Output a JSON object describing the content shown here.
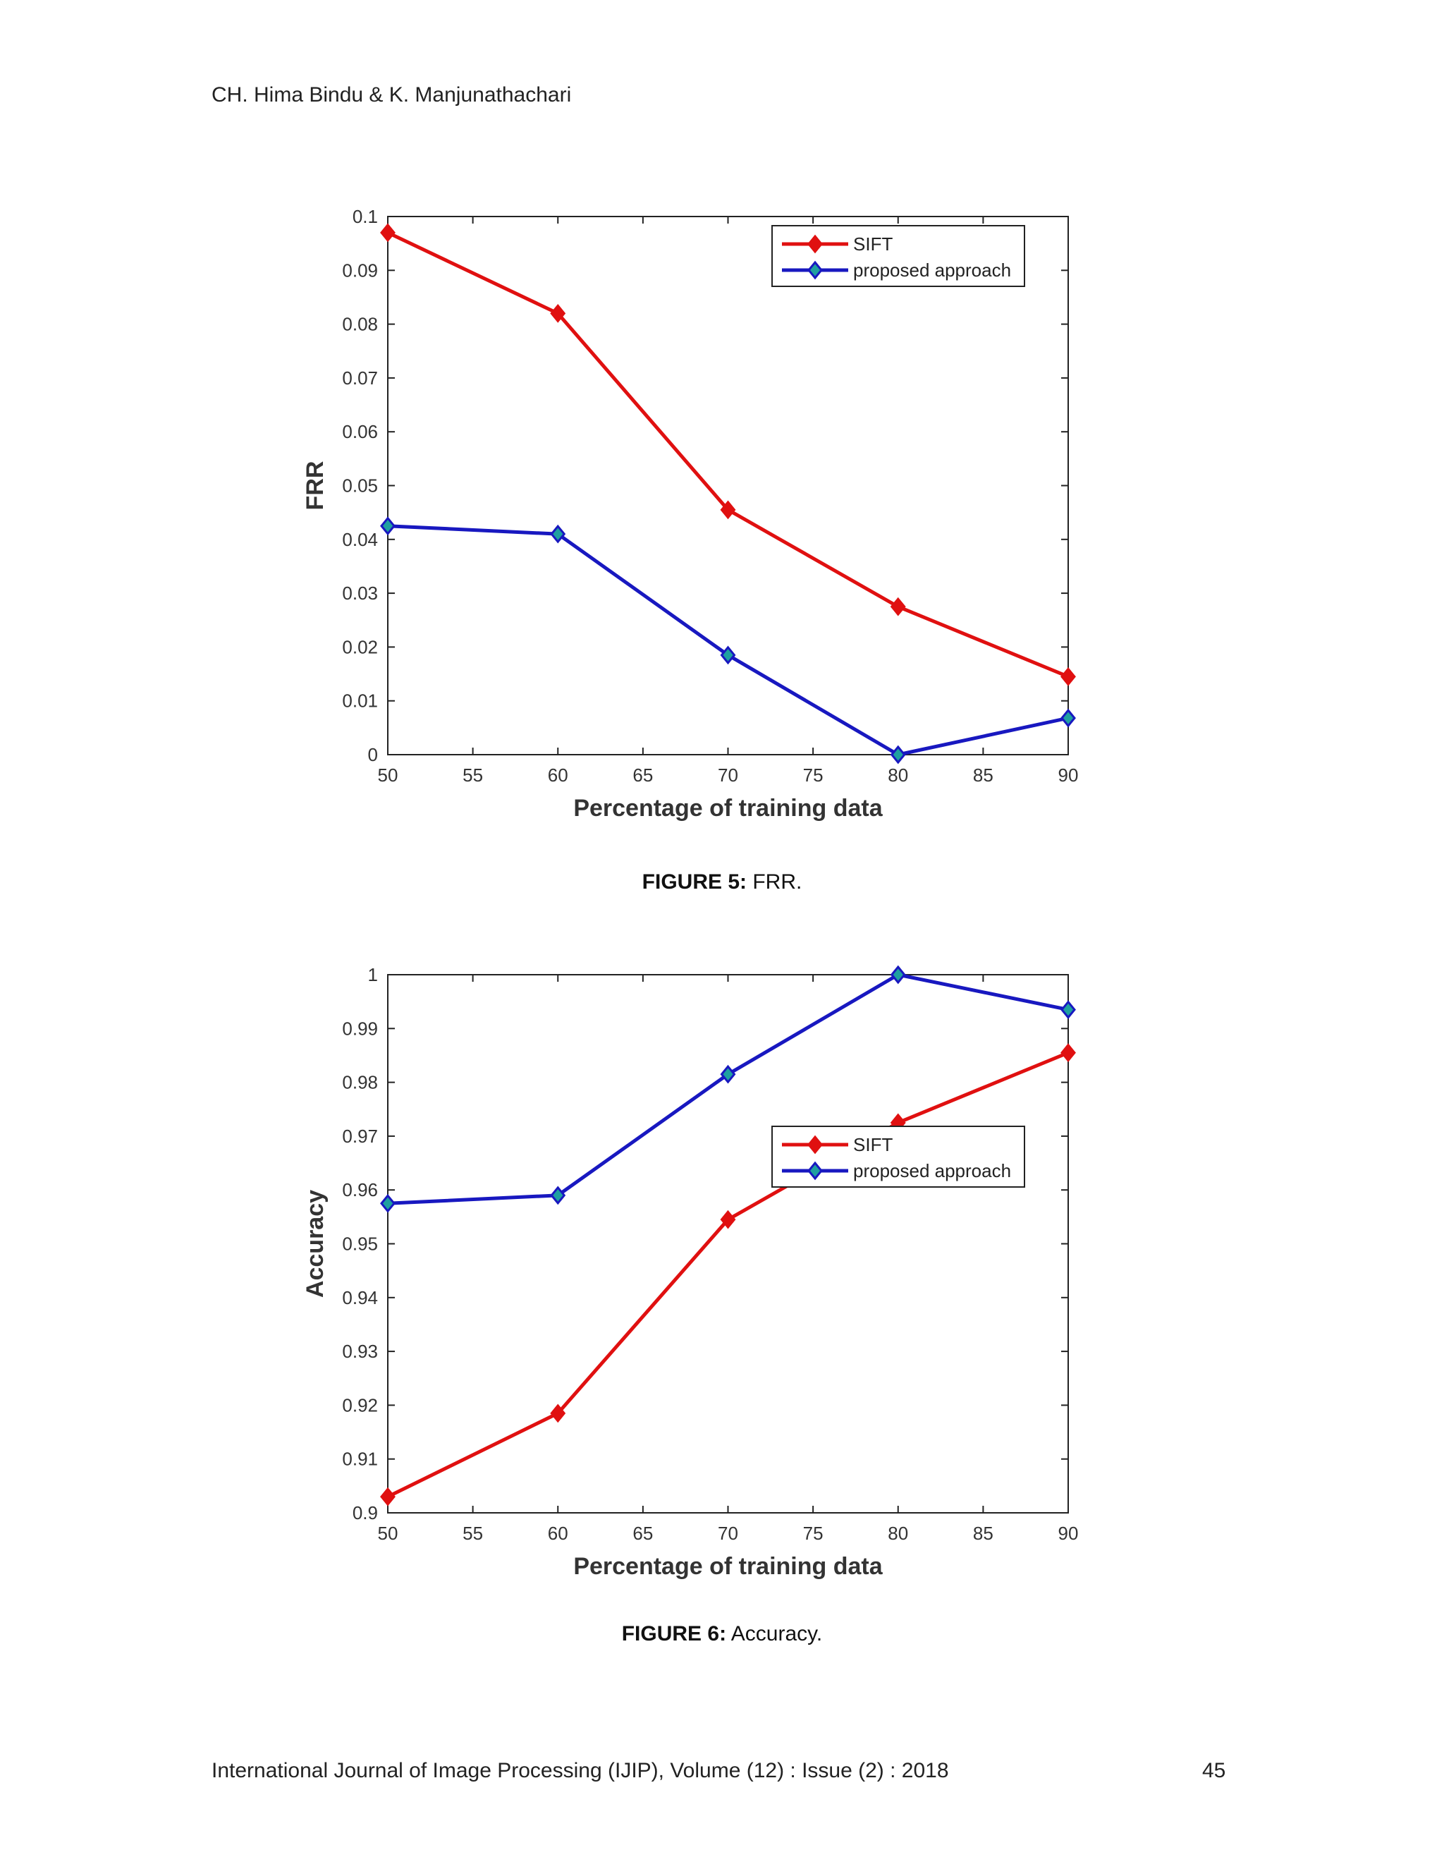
{
  "header": {
    "authors": "CH. Hima Bindu & K. Manjunathachari"
  },
  "footer": {
    "journal": "International Journal of Image Processing (IJIP), Volume (12) : Issue (2) : 2018",
    "page": "45"
  },
  "figures": [
    {
      "caption_label": "FIGURE 5:",
      "caption_text": " FRR."
    },
    {
      "caption_label": "FIGURE 6:",
      "caption_text": " Accuracy."
    }
  ],
  "colors": {
    "sift": "#e01010",
    "proposed": "#1818c0",
    "proposed_marker_fill": "#1fa0a0"
  },
  "chart_data": [
    {
      "type": "line",
      "xlabel": "Percentage of training data",
      "ylabel": "FRR",
      "xlim": [
        50,
        90
      ],
      "ylim": [
        0,
        0.1
      ],
      "xticks": [
        50,
        55,
        60,
        65,
        70,
        75,
        80,
        85,
        90
      ],
      "xtick_labels": [
        "50",
        "55",
        "60",
        "65",
        "70",
        "75",
        "80",
        "85",
        "90"
      ],
      "yticks": [
        0,
        0.01,
        0.02,
        0.03,
        0.04,
        0.05,
        0.06,
        0.07,
        0.08,
        0.09,
        0.1
      ],
      "ytick_labels": [
        "0",
        "0.01",
        "0.02",
        "0.03",
        "0.04",
        "0.05",
        "0.06",
        "0.07",
        "0.08",
        "0.09",
        "0.1"
      ],
      "grid": false,
      "legend": "top-right",
      "x": [
        50,
        60,
        70,
        80,
        90
      ],
      "series": [
        {
          "name": "SIFT",
          "values": [
            0.097,
            0.082,
            0.0455,
            0.0275,
            0.0145
          ]
        },
        {
          "name": "proposed approach",
          "values": [
            0.0425,
            0.041,
            0.0185,
            0.0,
            0.0068
          ]
        }
      ]
    },
    {
      "type": "line",
      "xlabel": "Percentage of training data",
      "ylabel": "Accuracy",
      "xlim": [
        50,
        90
      ],
      "ylim": [
        0.9,
        1
      ],
      "xticks": [
        50,
        55,
        60,
        65,
        70,
        75,
        80,
        85,
        90
      ],
      "xtick_labels": [
        "50",
        "55",
        "60",
        "65",
        "70",
        "75",
        "80",
        "85",
        "90"
      ],
      "yticks": [
        0.9,
        0.91,
        0.92,
        0.93,
        0.94,
        0.95,
        0.96,
        0.97,
        0.98,
        0.99,
        1
      ],
      "ytick_labels": [
        "0.9",
        "0.91",
        "0.92",
        "0.93",
        "0.94",
        "0.95",
        "0.96",
        "0.97",
        "0.98",
        "0.99",
        "1"
      ],
      "grid": false,
      "legend": "center-right",
      "x": [
        50,
        60,
        70,
        80,
        90
      ],
      "series": [
        {
          "name": "SIFT",
          "values": [
            0.903,
            0.9185,
            0.9545,
            0.9725,
            0.9855
          ]
        },
        {
          "name": "proposed approach",
          "values": [
            0.9575,
            0.959,
            0.9815,
            1.0,
            0.9935
          ]
        }
      ]
    }
  ]
}
